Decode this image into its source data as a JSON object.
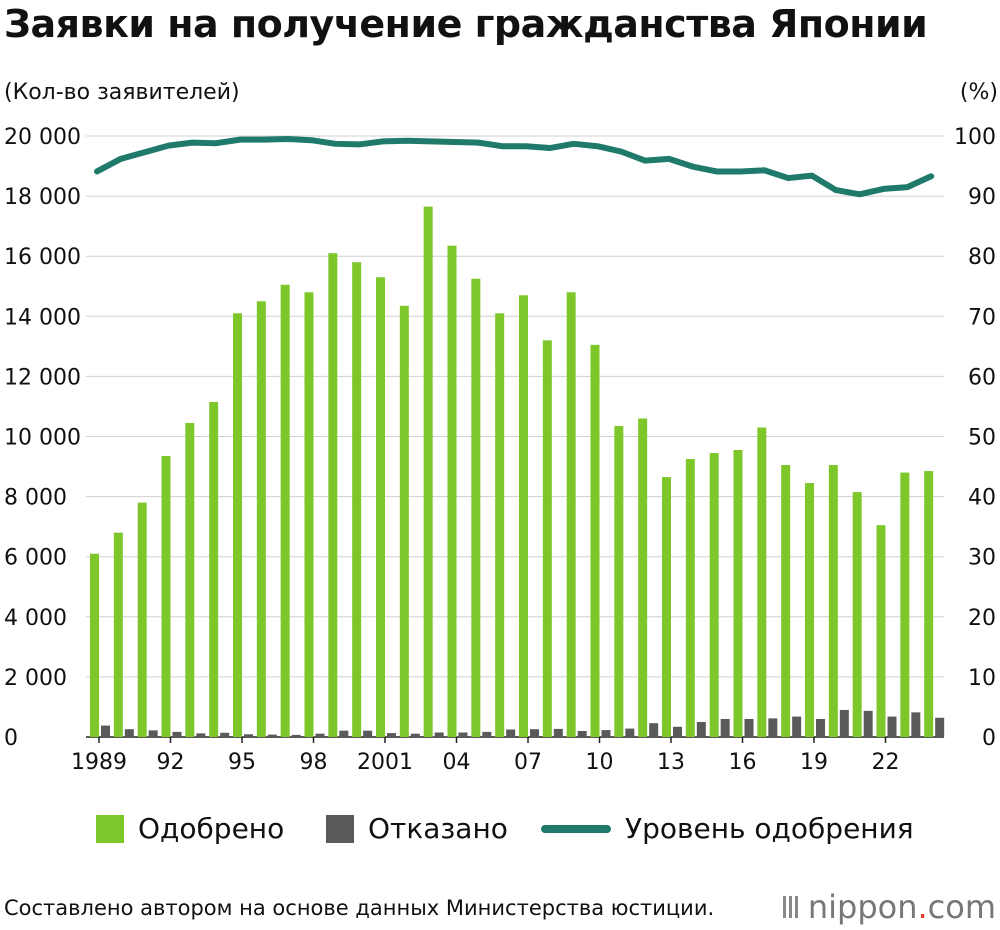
{
  "header": {
    "title": "Заявки на получение гражданства Японии",
    "left_unit": "(Кол-во заявителей)",
    "right_unit": "(%)"
  },
  "legend": {
    "approved": "Одобрено",
    "rejected": "Отказано",
    "rate": "Уровень одобрения"
  },
  "footer": {
    "source": "Составлено автором на основе данных Министерства юстиции.",
    "logo_main": "nippon",
    "logo_dot": ".",
    "logo_tld": "com"
  },
  "chart_data": {
    "type": "bar",
    "title": "Заявки на получение гражданства Японии",
    "years": [
      1989,
      1990,
      1991,
      1992,
      1993,
      1994,
      1995,
      1996,
      1997,
      1998,
      1999,
      2000,
      2001,
      2002,
      2003,
      2004,
      2005,
      2006,
      2007,
      2008,
      2009,
      2010,
      2011,
      2012,
      2013,
      2014,
      2015,
      2016,
      2017,
      2018,
      2019,
      2020,
      2021,
      2022,
      2023,
      2024
    ],
    "x_tick_labels": [
      {
        "year": 1989,
        "label": "1989"
      },
      {
        "year": 1992,
        "label": "92"
      },
      {
        "year": 1995,
        "label": "95"
      },
      {
        "year": 1998,
        "label": "98"
      },
      {
        "year": 2001,
        "label": "2001"
      },
      {
        "year": 2004,
        "label": "04"
      },
      {
        "year": 2007,
        "label": "07"
      },
      {
        "year": 2010,
        "label": "10"
      },
      {
        "year": 2013,
        "label": "13"
      },
      {
        "year": 2016,
        "label": "16"
      },
      {
        "year": 2019,
        "label": "19"
      },
      {
        "year": 2022,
        "label": "22"
      }
    ],
    "y_left": {
      "label": "(Кол-во заявителей)",
      "min": 0,
      "max": 20000,
      "ticks": [
        "0",
        "2 000",
        "4 000",
        "6 000",
        "8 000",
        "10 000",
        "12 000",
        "14 000",
        "16 000",
        "18 000",
        "20 000"
      ]
    },
    "y_right": {
      "label": "(%)",
      "min": 0,
      "max": 100,
      "ticks": [
        "0",
        "10",
        "20",
        "30",
        "40",
        "50",
        "60",
        "70",
        "80",
        "90",
        "100"
      ]
    },
    "grid": true,
    "legend_position": "bottom",
    "series": [
      {
        "name": "Одобрено",
        "type": "bar",
        "axis": "left",
        "color": "#7dc72a",
        "values": [
          6100,
          6800,
          7800,
          9350,
          10450,
          11150,
          14100,
          14500,
          15050,
          14800,
          16100,
          15800,
          15300,
          14350,
          17650,
          16350,
          15250,
          14100,
          14700,
          13200,
          14800,
          13050,
          10350,
          10600,
          8650,
          9250,
          9450,
          9550,
          10300,
          9050,
          8450,
          9050,
          8150,
          7050,
          8800,
          8850
        ]
      },
      {
        "name": "Отказано",
        "type": "bar",
        "axis": "left",
        "color": "#5a5a5a",
        "values": [
          380,
          260,
          220,
          170,
          120,
          140,
          90,
          80,
          70,
          110,
          210,
          210,
          130,
          110,
          150,
          150,
          170,
          250,
          260,
          270,
          200,
          230,
          280,
          460,
          340,
          500,
          600,
          600,
          620,
          680,
          600,
          900,
          870,
          680,
          820,
          640
        ]
      },
      {
        "name": "Уровень одобрения",
        "type": "line",
        "axis": "right",
        "color": "#1f7a6b",
        "values": [
          94.1,
          96.2,
          97.3,
          98.4,
          98.9,
          98.8,
          99.4,
          99.4,
          99.5,
          99.3,
          98.7,
          98.6,
          99.1,
          99.2,
          99.1,
          99.0,
          98.9,
          98.3,
          98.3,
          98.0,
          98.7,
          98.3,
          97.4,
          95.9,
          96.2,
          94.9,
          94.1,
          94.1,
          94.3,
          93.0,
          93.4,
          91.0,
          90.3,
          91.2,
          91.5,
          93.3
        ]
      }
    ]
  }
}
